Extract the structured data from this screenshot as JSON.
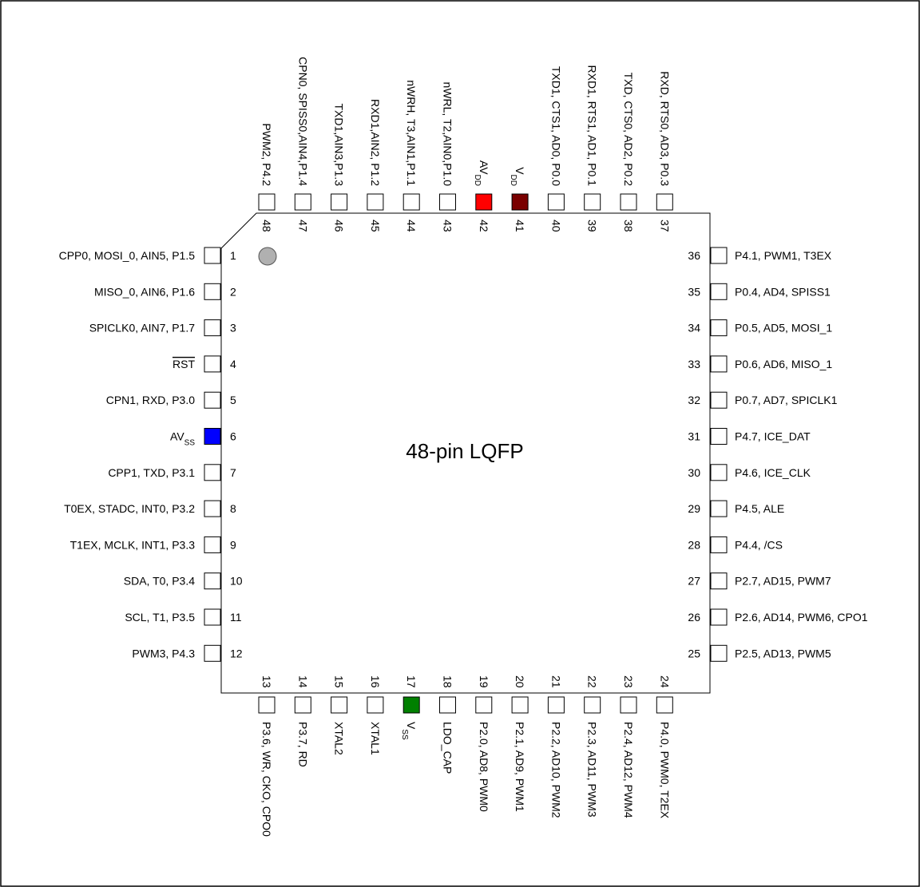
{
  "chip": {
    "title": "48-pin LQFP"
  },
  "colors": {
    "red": "#ff0000",
    "darkred": "#7a0000",
    "blue": "#0000ff",
    "green": "#008000",
    "gray": "#b0b0b0"
  },
  "left_pins": [
    {
      "num": "1",
      "label": "CPP0, MOSI_0, AIN5, P1.5"
    },
    {
      "num": "2",
      "label": "MISO_0, AIN6, P1.6"
    },
    {
      "num": "3",
      "label": "SPICLK0, AIN7, P1.7"
    },
    {
      "num": "4",
      "label": "RST",
      "overline": true,
      "label_color": "red"
    },
    {
      "num": "5",
      "label": "CPN1, RXD, P3.0"
    },
    {
      "num": "6",
      "label": "AVSS",
      "main": "AV",
      "sub": "SS",
      "fill": "blue"
    },
    {
      "num": "7",
      "label": "CPP1, TXD, P3.1"
    },
    {
      "num": "8",
      "label": "T0EX, STADC, INT0, P3.2"
    },
    {
      "num": "9",
      "label": "T1EX, MCLK, INT1, P3.3"
    },
    {
      "num": "10",
      "label": "SDA, T0, P3.4"
    },
    {
      "num": "11",
      "label": "SCL, T1, P3.5"
    },
    {
      "num": "12",
      "label": "PWM3, P4.3"
    }
  ],
  "right_pins": [
    {
      "num": "36",
      "label": "P4.1, PWM1, T3EX"
    },
    {
      "num": "35",
      "label": "P0.4, AD4, SPISS1"
    },
    {
      "num": "34",
      "label": "P0.5, AD5, MOSI_1"
    },
    {
      "num": "33",
      "label": "P0.6, AD6, MISO_1"
    },
    {
      "num": "32",
      "label": "P0.7, AD7, SPICLK1"
    },
    {
      "num": "31",
      "label": "P4.7, ICE_DAT"
    },
    {
      "num": "30",
      "label": "P4.6, ICE_CLK"
    },
    {
      "num": "29",
      "label": "P4.5, ALE"
    },
    {
      "num": "28",
      "label": "P4.4, /CS"
    },
    {
      "num": "27",
      "label": "P2.7, AD15, PWM7"
    },
    {
      "num": "26",
      "label": "P2.6, AD14, PWM6, CPO1"
    },
    {
      "num": "25",
      "label": "P2.5, AD13, PWM5"
    }
  ],
  "top_pins": [
    {
      "num": "48",
      "label": "PWM2, P4.2"
    },
    {
      "num": "47",
      "label": "CPN0, SPISS0,AIN4,P1.4"
    },
    {
      "num": "46",
      "label": "TXD1,AIN3,P1.3"
    },
    {
      "num": "45",
      "label": "RXD1,AIN2, P1.2"
    },
    {
      "num": "44",
      "label": "nWRH, T3,AIN1,P1.1"
    },
    {
      "num": "43",
      "label": "nWRL, T2,AIN0,P1.0"
    },
    {
      "num": "42",
      "label": "AVDD",
      "main": "AV",
      "sub": "DD",
      "fill": "red"
    },
    {
      "num": "41",
      "label": "VDD",
      "main": "V",
      "sub": "DD",
      "fill": "darkred"
    },
    {
      "num": "40",
      "label": "TXD1, CTS1, AD0, P0.0"
    },
    {
      "num": "39",
      "label": "RXD1, RTS1, AD1, P0.1"
    },
    {
      "num": "38",
      "label": "TXD, CTS0, AD2, P0.2"
    },
    {
      "num": "37",
      "label": "RXD, RTS0, AD3, P0.3"
    }
  ],
  "bottom_pins": [
    {
      "num": "13",
      "label": "P3.6, WR, CKO, CPO0"
    },
    {
      "num": "14",
      "label": "P3.7, RD"
    },
    {
      "num": "15",
      "label": "XTAL2"
    },
    {
      "num": "16",
      "label": "XTAL1"
    },
    {
      "num": "17",
      "label": "VSS",
      "main": "V",
      "sub": "SS",
      "fill": "green"
    },
    {
      "num": "18",
      "label": "LDO_CAP"
    },
    {
      "num": "19",
      "label": "P2.0, AD8, PWM0"
    },
    {
      "num": "20",
      "label": "P2.1, AD9, PWM1"
    },
    {
      "num": "21",
      "label": "P2.2, AD10, PWM2"
    },
    {
      "num": "22",
      "label": "P2.3, AD11, PWM3"
    },
    {
      "num": "23",
      "label": "P2.4, AD12, PWM4"
    },
    {
      "num": "24",
      "label": "P4.0, PWM0, T2EX"
    }
  ]
}
